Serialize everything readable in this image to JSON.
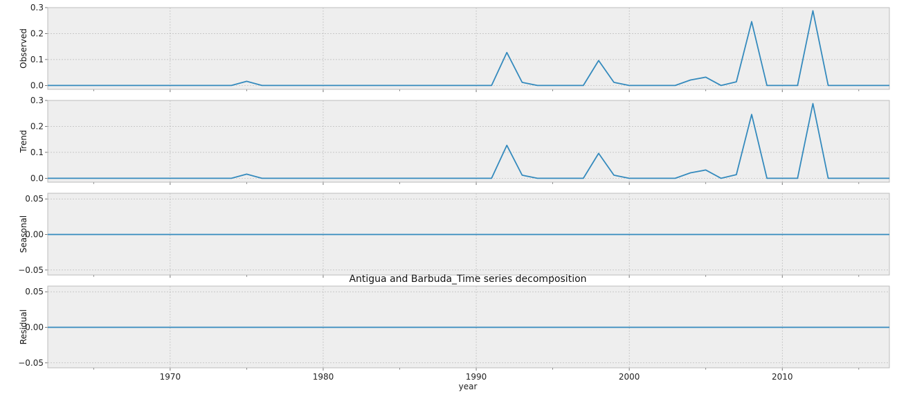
{
  "chart_data": {
    "type": "line",
    "title": "Antigua and Barbuda_Time series decomposition",
    "xlabel": "year",
    "xlim": [
      1962,
      2017
    ],
    "x_ticks": [
      1970,
      1980,
      1990,
      2000,
      2010
    ],
    "x_minor_ticks": [
      1965,
      1975,
      1985,
      1995,
      2005,
      2015
    ],
    "x": [
      1962,
      1963,
      1964,
      1965,
      1966,
      1967,
      1968,
      1969,
      1970,
      1971,
      1972,
      1973,
      1974,
      1975,
      1976,
      1977,
      1978,
      1979,
      1980,
      1981,
      1982,
      1983,
      1984,
      1985,
      1986,
      1987,
      1988,
      1989,
      1990,
      1991,
      1992,
      1993,
      1994,
      1995,
      1996,
      1997,
      1998,
      1999,
      2000,
      2001,
      2002,
      2003,
      2004,
      2005,
      2006,
      2007,
      2008,
      2009,
      2010,
      2011,
      2012,
      2013,
      2014,
      2015,
      2016,
      2017
    ],
    "grid": true,
    "colors": {
      "line": "#348abd",
      "panel_bg": "#eeeeee",
      "grid": "#b0b0b0",
      "border": "#bcbcbc"
    },
    "panels": [
      {
        "ylabel": "Observed",
        "ylim": [
          -0.015,
          0.3
        ],
        "y_ticks": [
          0.0,
          0.1,
          0.2,
          0.3
        ],
        "y_tick_labels": [
          "0.0",
          "0.1",
          "0.2",
          "0.3"
        ],
        "values": [
          0,
          0,
          0,
          0,
          0,
          0,
          0,
          0,
          0,
          0,
          0,
          0,
          0,
          0.016,
          0,
          0,
          0,
          0,
          0,
          0,
          0,
          0,
          0,
          0,
          0,
          0,
          0,
          0,
          0,
          0,
          0.127,
          0.012,
          0,
          0,
          0,
          0,
          0.096,
          0.012,
          0,
          0,
          0,
          0,
          0.021,
          0.032,
          0,
          0.014,
          0.246,
          0,
          0,
          0,
          0.288,
          0,
          0,
          0,
          0,
          0
        ]
      },
      {
        "ylabel": "Trend",
        "ylim": [
          -0.015,
          0.3
        ],
        "y_ticks": [
          0.0,
          0.1,
          0.2,
          0.3
        ],
        "y_tick_labels": [
          "0.0",
          "0.1",
          "0.2",
          "0.3"
        ],
        "values": [
          0,
          0,
          0,
          0,
          0,
          0,
          0,
          0,
          0,
          0,
          0,
          0,
          0,
          0.016,
          0,
          0,
          0,
          0,
          0,
          0,
          0,
          0,
          0,
          0,
          0,
          0,
          0,
          0,
          0,
          0,
          0.127,
          0.012,
          0,
          0,
          0,
          0,
          0.096,
          0.012,
          0,
          0,
          0,
          0,
          0.021,
          0.032,
          0,
          0.014,
          0.246,
          0,
          0,
          0,
          0.288,
          0,
          0,
          0,
          0,
          0
        ]
      },
      {
        "ylabel": "Seasonal",
        "ylim": [
          -0.057,
          0.058
        ],
        "y_ticks": [
          -0.05,
          0.0,
          0.05
        ],
        "y_tick_labels": [
          "−0.05",
          "0.00",
          "0.05"
        ],
        "values": [
          0,
          0,
          0,
          0,
          0,
          0,
          0,
          0,
          0,
          0,
          0,
          0,
          0,
          0,
          0,
          0,
          0,
          0,
          0,
          0,
          0,
          0,
          0,
          0,
          0,
          0,
          0,
          0,
          0,
          0,
          0,
          0,
          0,
          0,
          0,
          0,
          0,
          0,
          0,
          0,
          0,
          0,
          0,
          0,
          0,
          0,
          0,
          0,
          0,
          0,
          0,
          0,
          0,
          0,
          0,
          0
        ]
      },
      {
        "ylabel": "Residual",
        "ylim": [
          -0.057,
          0.058
        ],
        "y_ticks": [
          -0.05,
          0.0,
          0.05
        ],
        "y_tick_labels": [
          "−0.05",
          "0.00",
          "0.05"
        ],
        "values": [
          0,
          0,
          0,
          0,
          0,
          0,
          0,
          0,
          0,
          0,
          0,
          0,
          0,
          0,
          0,
          0,
          0,
          0,
          0,
          0,
          0,
          0,
          0,
          0,
          0,
          0,
          0,
          0,
          0,
          0,
          0,
          0,
          0,
          0,
          0,
          0,
          0,
          0,
          0,
          0,
          0,
          0,
          0,
          0,
          0,
          0,
          0,
          0,
          0,
          0,
          0,
          0,
          0,
          0,
          0,
          0
        ]
      }
    ]
  }
}
